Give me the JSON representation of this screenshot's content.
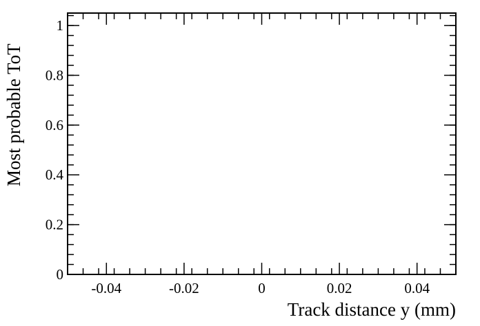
{
  "chart_data": {
    "type": "scatter",
    "title": "",
    "xlabel": "Track distance y (mm)",
    "ylabel": "Most probable ToT",
    "xlim": [
      -0.05,
      0.05
    ],
    "ylim": [
      0,
      1.05
    ],
    "xticks": [
      -0.04,
      -0.02,
      0,
      0.02,
      0.04
    ],
    "xtick_labels": [
      "-0.04",
      "-0.02",
      "0",
      "0.02",
      "0.04"
    ],
    "yticks": [
      0,
      0.2,
      0.4,
      0.6,
      0.8,
      1
    ],
    "ytick_labels": [
      "0",
      "0.2",
      "0.4",
      "0.6",
      "0.8",
      "1"
    ],
    "grid": false,
    "series": [
      {
        "values": []
      }
    ]
  }
}
